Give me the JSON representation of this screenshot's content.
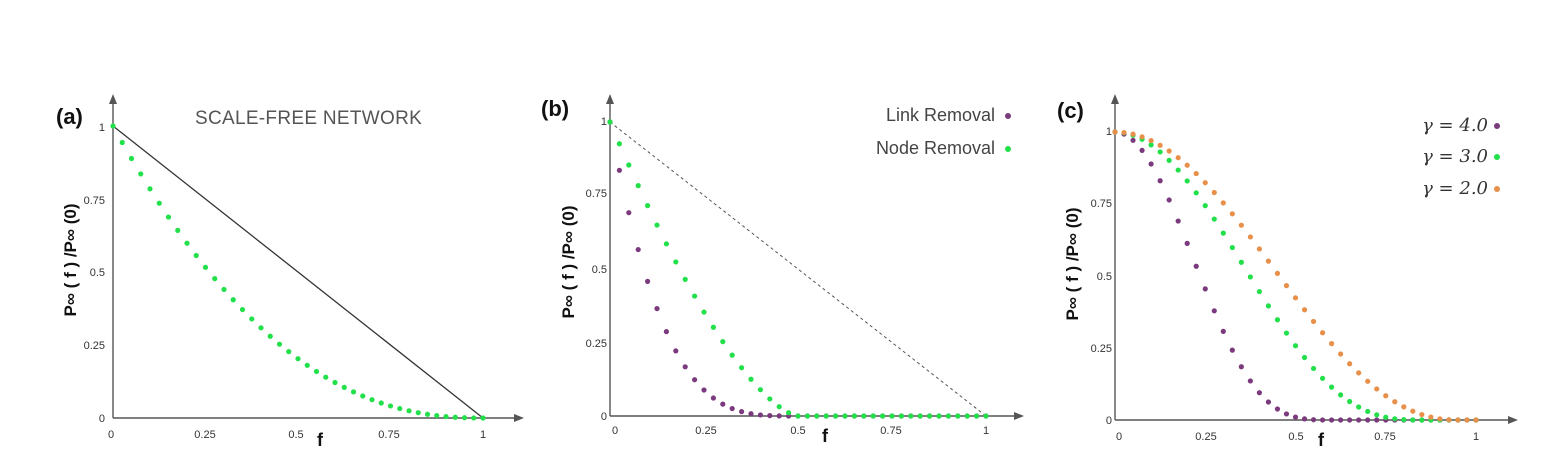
{
  "chart_data": [
    {
      "type": "scatter",
      "panel_label": "(a)",
      "annotation": "SCALE-FREE NETWORK",
      "xlabel": "f",
      "ylabel": "P∞ ( f ) /P∞ (0)",
      "xlim": [
        0,
        1
      ],
      "ylim": [
        0,
        1
      ],
      "x_ticks": [
        "0",
        "0.25",
        "0.5",
        "0.75",
        "1"
      ],
      "y_ticks": [
        "0",
        "0.25",
        "0.5",
        "0.75",
        "1"
      ],
      "reference_line": {
        "style": "solid",
        "from": [
          0,
          1
        ],
        "to": [
          1,
          0
        ]
      },
      "series": [
        {
          "name": "",
          "color": "#22e04a",
          "model": "poly",
          "exponent": 2.3,
          "x_end": 1.0,
          "n_points": 41
        }
      ]
    },
    {
      "type": "scatter",
      "panel_label": "(b)",
      "xlabel": "f",
      "ylabel": "P∞ ( f ) /P∞ (0)",
      "xlim": [
        0,
        1
      ],
      "ylim": [
        0,
        1
      ],
      "x_ticks": [
        "0",
        "0.25",
        "0.5",
        "0.75",
        "1"
      ],
      "y_ticks": [
        "0",
        "0.25",
        "0.5",
        "0.75",
        "1"
      ],
      "reference_line": {
        "style": "dashed",
        "from": [
          0,
          1
        ],
        "to": [
          1,
          0
        ]
      },
      "legend_position": "top-right",
      "series": [
        {
          "name": "Link Removal",
          "color": "#7b3a7e",
          "model": "tanh",
          "fc": 0.5,
          "exponent": 3.5,
          "x_end": 1.0,
          "n_points": 41
        },
        {
          "name": "Node Removal",
          "color": "#22e04a",
          "model": "tanh",
          "fc": 0.5,
          "exponent": 1.5,
          "x_end": 1.0,
          "n_points": 41
        }
      ]
    },
    {
      "type": "scatter",
      "panel_label": "(c)",
      "xlabel": "f",
      "ylabel": "P∞ ( f ) /P∞ (0)",
      "xlim": [
        0,
        1
      ],
      "ylim": [
        0,
        1
      ],
      "x_ticks": [
        "0",
        "0.25",
        "0.5",
        "0.75",
        "1"
      ],
      "y_ticks": [
        "0",
        "0.25",
        "0.5",
        "0.75",
        "1"
      ],
      "legend_position": "top-right",
      "series": [
        {
          "name": "γ = 4.0",
          "color": "#7b3a7e",
          "model": "smooth",
          "fc": 0.6,
          "exponent": 1.7,
          "x_end": 1.0,
          "n_points": 41
        },
        {
          "name": "γ = 3.0",
          "color": "#22e04a",
          "model": "smooth",
          "fc": 0.84,
          "exponent": 1.3,
          "x_end": 1.0,
          "n_points": 41
        },
        {
          "name": "γ = 2.0",
          "color": "#e8904a",
          "model": "smooth",
          "fc": 0.95,
          "exponent": 1.1,
          "x_end": 1.0,
          "n_points": 41
        }
      ]
    }
  ]
}
